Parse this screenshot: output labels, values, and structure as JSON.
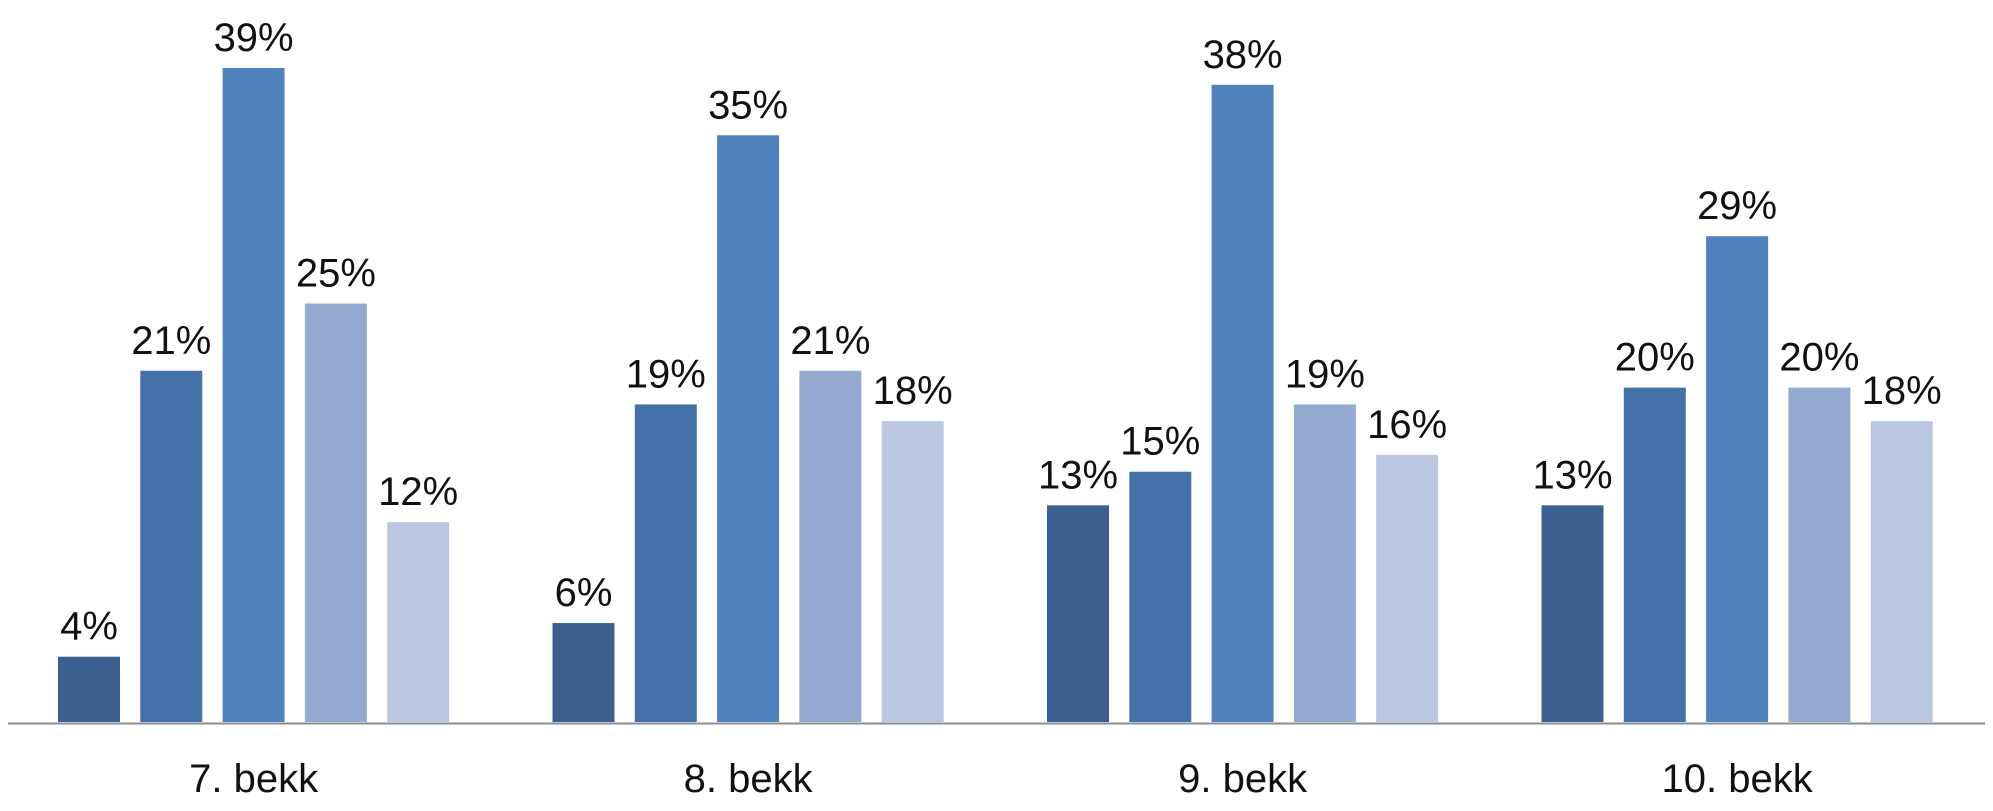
{
  "chart_data": {
    "type": "bar",
    "title": "",
    "xlabel": "",
    "ylabel": "",
    "categories": [
      "7. bekk",
      "8. bekk",
      "9. bekk",
      "10. bekk"
    ],
    "value_suffix": "%",
    "ylim": [
      0,
      40
    ],
    "grid": false,
    "legend": "none",
    "series": [
      {
        "values": [
          4,
          6,
          13,
          13
        ],
        "color": "#3b5f8f"
      },
      {
        "values": [
          21,
          19,
          15,
          20
        ],
        "color": "#4472a8"
      },
      {
        "values": [
          39,
          35,
          38,
          29
        ],
        "color": "#4f81bd"
      },
      {
        "values": [
          25,
          21,
          19,
          20
        ],
        "color": "#95aad0"
      },
      {
        "values": [
          12,
          18,
          16,
          18
        ],
        "color": "#b9c7e1"
      }
    ],
    "value_labels": [
      [
        "4%",
        "6%",
        "13%",
        "13%"
      ],
      [
        "21%",
        "19%",
        "15%",
        "20%"
      ],
      [
        "39%",
        "35%",
        "38%",
        "29%"
      ],
      [
        "25%",
        "21%",
        "19%",
        "20%"
      ],
      [
        "12%",
        "18%",
        "16%",
        "18%"
      ]
    ],
    "axis_color": "#8c8c8c"
  }
}
